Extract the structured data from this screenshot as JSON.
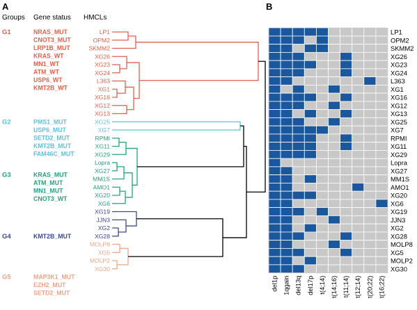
{
  "panels": {
    "a": "A",
    "b": "B"
  },
  "headers": {
    "groups": "Groups",
    "gene_status": "Gene status",
    "hmcls": "HMCLs"
  },
  "colors": {
    "G1": "#e0604c",
    "G2": "#5bc3dc",
    "G3": "#22a37e",
    "G4": "#3a4a8c",
    "G5": "#eea486",
    "root": "#000000",
    "heat_on": "#1b579c",
    "heat_off": "#c8c8c8",
    "heat_grid": "#ffffff"
  },
  "groups": [
    {
      "id": "G1",
      "label": "G1",
      "genes": [
        "NRAS_MUT",
        "CNOT3_MUT",
        "LRP1B_MUT",
        "KRAS_WT",
        "MN1_WT",
        "ATM_WT",
        "USP6_WT",
        "KMT2B_WT"
      ]
    },
    {
      "id": "G2",
      "label": "G2",
      "genes": [
        "PMS1_MUT",
        "USP6_MUT",
        "SETD2_MUT",
        "KMT2B_MUT",
        "FAM46C_MUT"
      ]
    },
    {
      "id": "G3",
      "label": "G3",
      "genes": [
        "KRAS_MUT",
        "ATM_MUT",
        "MN1_MUT",
        "CNOT3_WT"
      ]
    },
    {
      "id": "G4",
      "label": "G4",
      "genes": [
        "KMT2B_MUT"
      ]
    },
    {
      "id": "G5",
      "label": "G5",
      "genes": [
        "MAP3K1_MUT",
        "EZH2_MUT",
        "SETD2_MUT"
      ]
    }
  ],
  "cell_lines": [
    {
      "name": "LP1",
      "group": "G1"
    },
    {
      "name": "OPM2",
      "group": "G1"
    },
    {
      "name": "SKMM2",
      "group": "G1"
    },
    {
      "name": "XG26",
      "group": "G1"
    },
    {
      "name": "XG23",
      "group": "G1"
    },
    {
      "name": "XG24",
      "group": "G1"
    },
    {
      "name": "L363",
      "group": "G1"
    },
    {
      "name": "XG1",
      "group": "G1"
    },
    {
      "name": "XG16",
      "group": "G1"
    },
    {
      "name": "XG12",
      "group": "G1"
    },
    {
      "name": "XG13",
      "group": "G1"
    },
    {
      "name": "XG25",
      "group": "G2"
    },
    {
      "name": "XG7",
      "group": "G2"
    },
    {
      "name": "RPMI",
      "group": "G3"
    },
    {
      "name": "XG11",
      "group": "G3"
    },
    {
      "name": "XG29",
      "group": "G3"
    },
    {
      "name": "Lopra",
      "group": "G3"
    },
    {
      "name": "XG27",
      "group": "G3"
    },
    {
      "name": "MM1S",
      "group": "G3"
    },
    {
      "name": "AMO1",
      "group": "G3"
    },
    {
      "name": "XG20",
      "group": "G3"
    },
    {
      "name": "XG6",
      "group": "G3"
    },
    {
      "name": "XG19",
      "group": "G4"
    },
    {
      "name": "JJN3",
      "group": "G4"
    },
    {
      "name": "XG2",
      "group": "G4"
    },
    {
      "name": "XG28",
      "group": "G4"
    },
    {
      "name": "MOLP8",
      "group": "G5"
    },
    {
      "name": "XG5",
      "group": "G5"
    },
    {
      "name": "MOLP2",
      "group": "G5"
    },
    {
      "name": "XG30",
      "group": "G5"
    }
  ],
  "heatmap": {
    "columns": [
      "del1p",
      "1qgain",
      "del13q",
      "del17p",
      "t(4;14)",
      "t(14;16)",
      "t(11;14)",
      "t(12;14)",
      "t(20;22)",
      "t(16;22)"
    ],
    "matrix": [
      [
        1,
        1,
        1,
        1,
        1,
        0,
        0,
        0,
        0,
        0
      ],
      [
        1,
        1,
        1,
        0,
        1,
        0,
        0,
        0,
        0,
        0
      ],
      [
        1,
        1,
        0,
        1,
        1,
        0,
        0,
        0,
        0,
        0
      ],
      [
        1,
        1,
        1,
        0,
        0,
        0,
        1,
        0,
        0,
        0
      ],
      [
        1,
        1,
        1,
        1,
        0,
        0,
        1,
        0,
        0,
        0
      ],
      [
        1,
        1,
        1,
        0,
        0,
        0,
        1,
        0,
        0,
        0
      ],
      [
        1,
        1,
        0,
        0,
        0,
        0,
        0,
        0,
        1,
        0
      ],
      [
        1,
        0,
        1,
        0,
        0,
        1,
        0,
        0,
        0,
        0
      ],
      [
        1,
        1,
        1,
        1,
        0,
        0,
        1,
        0,
        0,
        0
      ],
      [
        1,
        1,
        1,
        0,
        0,
        1,
        0,
        0,
        0,
        0
      ],
      [
        1,
        1,
        0,
        1,
        0,
        0,
        1,
        0,
        0,
        0
      ],
      [
        1,
        1,
        1,
        0,
        0,
        1,
        0,
        0,
        0,
        0
      ],
      [
        1,
        1,
        1,
        1,
        1,
        0,
        0,
        0,
        0,
        0
      ],
      [
        1,
        1,
        1,
        1,
        0,
        0,
        1,
        0,
        0,
        0
      ],
      [
        1,
        1,
        1,
        1,
        0,
        0,
        1,
        0,
        0,
        0
      ],
      [
        1,
        1,
        1,
        1,
        0,
        0,
        0,
        0,
        0,
        0
      ],
      [
        1,
        0,
        0,
        0,
        0,
        0,
        0,
        0,
        0,
        0
      ],
      [
        1,
        1,
        0,
        0,
        0,
        0,
        0,
        0,
        0,
        0
      ],
      [
        1,
        1,
        0,
        1,
        0,
        0,
        0,
        0,
        0,
        0
      ],
      [
        1,
        1,
        0,
        0,
        0,
        0,
        0,
        1,
        0,
        0
      ],
      [
        1,
        1,
        1,
        1,
        0,
        0,
        0,
        0,
        0,
        0
      ],
      [
        1,
        1,
        0,
        0,
        0,
        0,
        0,
        0,
        0,
        1
      ],
      [
        1,
        1,
        1,
        0,
        1,
        0,
        0,
        0,
        0,
        0
      ],
      [
        1,
        1,
        0,
        0,
        0,
        1,
        0,
        0,
        0,
        0
      ],
      [
        1,
        1,
        0,
        1,
        0,
        0,
        0,
        0,
        0,
        0
      ],
      [
        1,
        1,
        1,
        0,
        0,
        0,
        1,
        0,
        0,
        0
      ],
      [
        1,
        1,
        0,
        0,
        0,
        1,
        0,
        0,
        0,
        0
      ],
      [
        1,
        1,
        1,
        0,
        0,
        0,
        1,
        0,
        0,
        0
      ],
      [
        1,
        1,
        0,
        1,
        0,
        0,
        0,
        0,
        0,
        0
      ],
      [
        1,
        1,
        1,
        0,
        0,
        0,
        0,
        0,
        0,
        0
      ]
    ]
  }
}
